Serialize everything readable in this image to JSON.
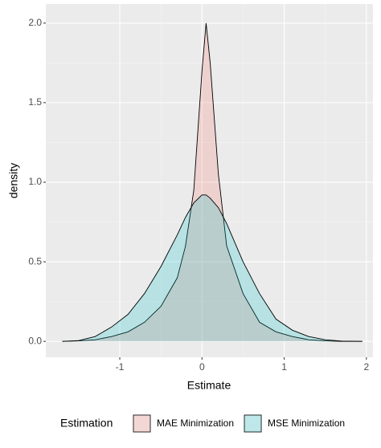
{
  "chart_data": {
    "type": "density",
    "x_label": "Estimate",
    "y_label": "density",
    "legend_title": "Estimation",
    "legend_position": "bottom",
    "x": [
      -1.7,
      -1.5,
      -1.3,
      -1.1,
      -0.9,
      -0.7,
      -0.5,
      -0.3,
      -0.2,
      -0.1,
      0,
      0.05,
      0.1,
      0.2,
      0.3,
      0.5,
      0.7,
      0.9,
      1.1,
      1.3,
      1.5,
      1.7,
      1.95
    ],
    "series": [
      {
        "name": "MAE Minimization",
        "color": "#F8766D",
        "values": [
          0,
          0.003,
          0.01,
          0.03,
          0.06,
          0.12,
          0.22,
          0.4,
          0.6,
          0.95,
          1.7,
          2.0,
          1.75,
          1.05,
          0.6,
          0.3,
          0.12,
          0.06,
          0.03,
          0.01,
          0.003,
          0,
          0
        ]
      },
      {
        "name": "MSE Minimization",
        "color": "#00BFC4",
        "values": [
          0,
          0.005,
          0.03,
          0.09,
          0.17,
          0.3,
          0.47,
          0.67,
          0.78,
          0.87,
          0.92,
          0.92,
          0.9,
          0.84,
          0.74,
          0.5,
          0.3,
          0.14,
          0.07,
          0.03,
          0.01,
          0.002,
          0
        ]
      }
    ],
    "fill_alpha": 0.22,
    "xlim": [
      -1.9,
      2.08
    ],
    "ylim": [
      -0.1,
      2.12
    ],
    "xticks": [
      -1,
      0,
      1,
      2
    ],
    "yticks": [
      {
        "value": 0,
        "label": "0.0"
      },
      {
        "value": 0.5,
        "label": "0.5"
      },
      {
        "value": 1,
        "label": "1.0"
      },
      {
        "value": 1.5,
        "label": "1.5"
      },
      {
        "value": 2,
        "label": "2.0"
      }
    ],
    "grid": true,
    "minor_grid": true
  }
}
